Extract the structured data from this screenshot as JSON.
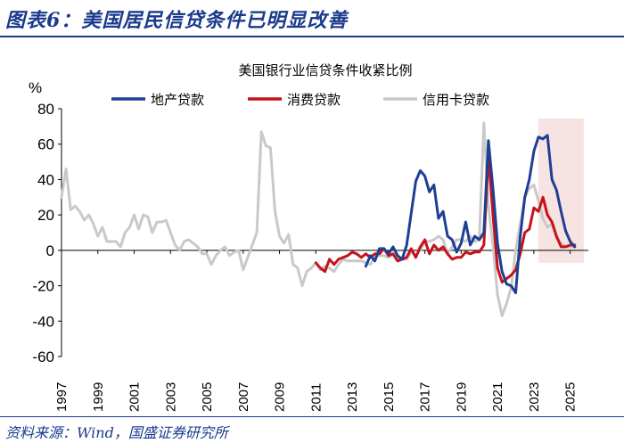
{
  "header": {
    "title": "图表6：美国居民信贷条件已明显改善"
  },
  "footer": {
    "source": "资料来源：Wind，国盛证券研究所"
  },
  "chart_data": {
    "type": "line",
    "title": "美国银行业信贷条件收紧比例",
    "ylabel": "%",
    "xlabel": "",
    "ylim": [
      -60,
      80
    ],
    "xlim": [
      1997,
      2026
    ],
    "yticks": [
      80,
      60,
      40,
      20,
      0,
      -20,
      -40,
      -60
    ],
    "yticks_labels": [
      "80",
      "60",
      "40",
      "20",
      "0",
      "-20",
      "-40",
      "-60"
    ],
    "xticks": [
      1997,
      1999,
      2001,
      2003,
      2005,
      2007,
      2009,
      2011,
      2013,
      2015,
      2017,
      2019,
      2021,
      2023,
      2025
    ],
    "xticks_labels": [
      "1997",
      "1999",
      "2001",
      "2003",
      "2005",
      "2007",
      "2009",
      "2011",
      "2013",
      "2015",
      "2017",
      "2019",
      "2021",
      "2023",
      "2025"
    ],
    "highlight_range": [
      2023.25,
      2025.75
    ],
    "series": [
      {
        "name": "地产贷款",
        "color": "#1f3f94",
        "x": [
          2013.75,
          2014,
          2014.25,
          2014.5,
          2014.75,
          2015,
          2015.25,
          2015.5,
          2015.75,
          2016,
          2016.25,
          2016.5,
          2016.75,
          2017,
          2017.25,
          2017.5,
          2017.75,
          2018,
          2018.25,
          2018.5,
          2018.75,
          2019,
          2019.25,
          2019.5,
          2019.75,
          2020,
          2020.25,
          2020.5,
          2020.75,
          2021,
          2021.25,
          2021.5,
          2021.75,
          2022,
          2022.25,
          2022.5,
          2022.75,
          2023,
          2023.25,
          2023.5,
          2023.75,
          2024,
          2024.25,
          2024.5,
          2024.75,
          2025,
          2025.25
        ],
        "y": [
          -9,
          -3,
          -6,
          1,
          1,
          -2,
          2,
          -3,
          -5,
          3,
          21,
          39,
          45,
          42,
          33,
          37,
          18,
          22,
          8,
          6,
          -1,
          4,
          16,
          3,
          8,
          6,
          10,
          62,
          35,
          4,
          -12,
          -19,
          -20,
          -24,
          8,
          30,
          40,
          56,
          64,
          63,
          65,
          40,
          34,
          22,
          11,
          5,
          2
        ]
      },
      {
        "name": "消费贷款",
        "color": "#c8111b",
        "x": [
          2011,
          2011.25,
          2011.5,
          2011.75,
          2012,
          2012.25,
          2012.5,
          2012.75,
          2013,
          2013.25,
          2013.5,
          2013.75,
          2014,
          2014.25,
          2014.5,
          2014.75,
          2015,
          2015.25,
          2015.5,
          2015.75,
          2016,
          2016.25,
          2016.5,
          2016.75,
          2017,
          2017.25,
          2017.5,
          2017.75,
          2018,
          2018.25,
          2018.5,
          2018.75,
          2019,
          2019.25,
          2019.5,
          2019.75,
          2020,
          2020.25,
          2020.5,
          2020.75,
          2021,
          2021.25,
          2021.5,
          2021.75,
          2022,
          2022.25,
          2022.5,
          2022.75,
          2023,
          2023.25,
          2023.5,
          2023.75,
          2024,
          2024.25,
          2024.5,
          2024.75,
          2025,
          2025.25
        ],
        "y": [
          -7,
          -10,
          -12,
          -5,
          -8,
          -5,
          -4,
          -3,
          -1,
          -2,
          -4,
          -2,
          -4,
          -2,
          -2,
          1,
          -3,
          -2,
          -6,
          -5,
          -4,
          1,
          -4,
          2,
          6,
          -2,
          3,
          0,
          2,
          -2,
          -5,
          -4,
          -4,
          -1,
          -2,
          -1,
          -1,
          3,
          54,
          20,
          -10,
          -18,
          -16,
          -14,
          -11,
          -2,
          10,
          12,
          24,
          22,
          30,
          20,
          16,
          8,
          2,
          2,
          3,
          3
        ]
      },
      {
        "name": "信用卡贷款",
        "color": "#c9c9c9",
        "x": [
          1997,
          1997.25,
          1997.5,
          1997.75,
          1998,
          1998.25,
          1998.5,
          1998.75,
          1999,
          1999.25,
          1999.5,
          1999.75,
          2000,
          2000.25,
          2000.5,
          2000.75,
          2001,
          2001.25,
          2001.5,
          2001.75,
          2002,
          2002.25,
          2002.5,
          2002.75,
          2003,
          2003.25,
          2003.5,
          2003.75,
          2004,
          2004.25,
          2004.5,
          2004.75,
          2005,
          2005.25,
          2005.5,
          2005.75,
          2006,
          2006.25,
          2006.5,
          2006.75,
          2007,
          2007.25,
          2007.5,
          2007.75,
          2008,
          2008.25,
          2008.5,
          2008.75,
          2009,
          2009.25,
          2009.5,
          2009.75,
          2010,
          2010.25,
          2010.5,
          2010.75,
          2011,
          2011.25,
          2011.5,
          2011.75,
          2012,
          2012.25,
          2012.5,
          2012.75,
          2013,
          2013.25,
          2013.5,
          2013.75,
          2014,
          2014.25,
          2014.5,
          2014.75,
          2015,
          2015.25,
          2015.5,
          2015.75,
          2016,
          2016.25,
          2016.5,
          2016.75,
          2017,
          2017.25,
          2017.5,
          2017.75,
          2018,
          2018.25,
          2018.5,
          2018.75,
          2019,
          2019.25,
          2019.5,
          2019.75,
          2020,
          2020.25,
          2020.5,
          2020.75,
          2021,
          2021.25,
          2021.5,
          2021.75,
          2022,
          2022.25,
          2022.5,
          2022.75,
          2023,
          2023.25,
          2023.5,
          2023.75,
          2024,
          2024.25,
          2024.5,
          2024.75,
          2025,
          2025.25
        ],
        "y": [
          30,
          46,
          23,
          25,
          22,
          17,
          20,
          15,
          8,
          13,
          5,
          5,
          5,
          2,
          10,
          13,
          20,
          12,
          20,
          19,
          10,
          16,
          16,
          17,
          10,
          3,
          0,
          5,
          6,
          4,
          2,
          -2,
          -2,
          -8,
          -3,
          0,
          2,
          -3,
          -1,
          0,
          -11,
          -4,
          3,
          10,
          67,
          59,
          58,
          22,
          8,
          4,
          9,
          -8,
          -10,
          -20,
          -12,
          -10,
          -7,
          -11,
          -9,
          -10,
          -12,
          -8,
          -5,
          -6,
          -6,
          -6,
          -6,
          -7,
          -8,
          -4,
          -3,
          -3,
          -4,
          -2,
          -4,
          -5,
          -5,
          -1,
          -3,
          0,
          5,
          5,
          6,
          8,
          6,
          -2,
          2,
          6,
          6,
          5,
          8,
          5,
          6,
          72,
          25,
          3,
          -25,
          -37,
          -30,
          -21,
          0,
          15,
          30,
          35,
          37,
          28,
          18,
          13,
          15,
          7,
          4,
          2,
          2,
          2
        ]
      }
    ]
  }
}
